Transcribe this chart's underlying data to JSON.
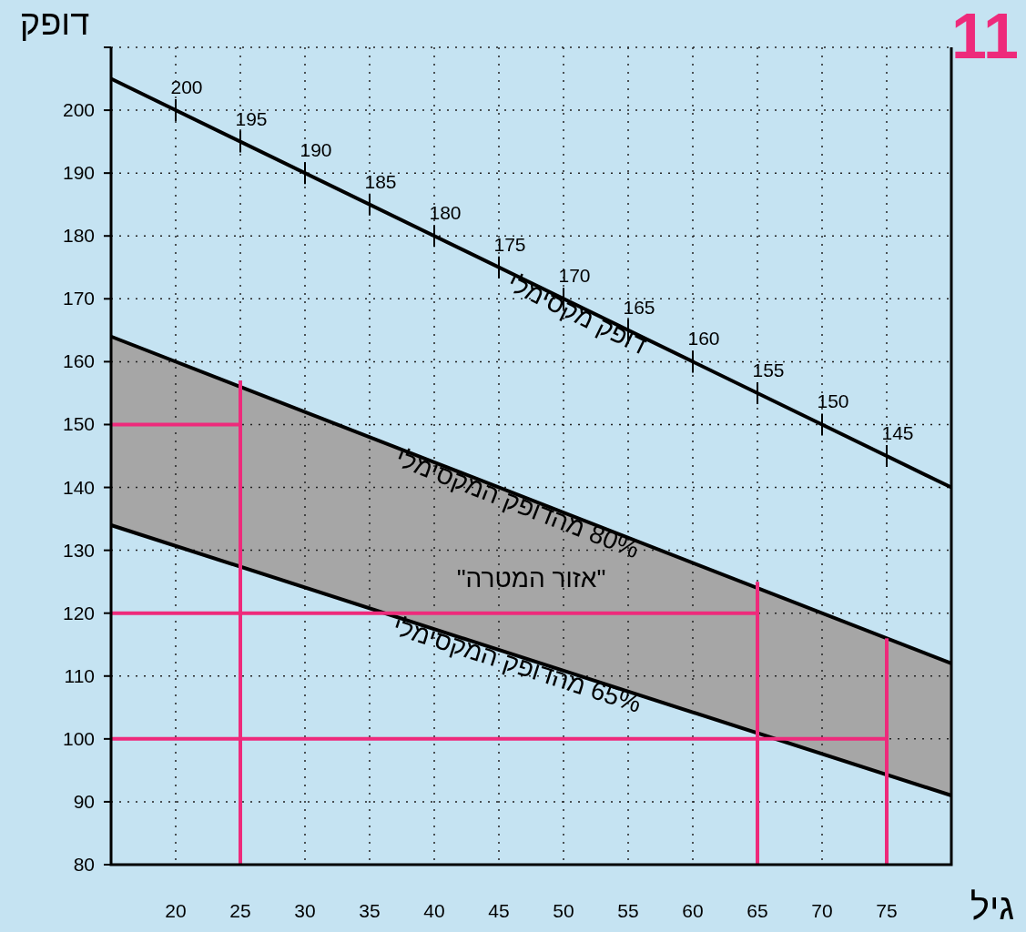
{
  "chart_data": {
    "type": "line",
    "xlabel": "גיל",
    "ylabel": "דופק",
    "xlim": [
      15,
      80
    ],
    "ylim": [
      80,
      210
    ],
    "xticks": [
      20,
      25,
      30,
      35,
      40,
      45,
      50,
      55,
      60,
      65,
      70,
      75
    ],
    "yticks": [
      80,
      90,
      100,
      110,
      120,
      130,
      140,
      150,
      160,
      170,
      180,
      190,
      200,
      {
        "value": 210,
        "label": null
      }
    ],
    "grid": true,
    "tick_labels": "xy",
    "series": [
      {
        "type": "line",
        "name": "דופק מקסימלי",
        "color": "#000000",
        "x": [
          15,
          80
        ],
        "values": [
          205,
          140
        ]
      },
      {
        "type": "line",
        "name": "80% מהדופק המקסימלי",
        "color": "#000000",
        "x": [
          15,
          80
        ],
        "values": [
          164,
          112
        ],
        "lower": [
          134,
          91
        ],
        "upper": [
          164,
          112
        ]
      },
      {
        "type": "line",
        "name": "65% מהדופק המקסימלי",
        "color": "#000000",
        "x": [
          15,
          80
        ],
        "values": [
          134,
          91
        ]
      },
      {
        "type": "line",
        "color": "#ee2a7b",
        "x": [
          15,
          25
        ],
        "values": [
          150,
          150
        ]
      },
      {
        "type": "line",
        "color": "#ee2a7b",
        "x": [
          25,
          25
        ],
        "values": [
          80,
          157
        ]
      },
      {
        "type": "line",
        "color": "#ee2a7b",
        "x": [
          15,
          65
        ],
        "values": [
          120,
          120
        ]
      },
      {
        "type": "line",
        "color": "#ee2a7b",
        "x": [
          65,
          65
        ],
        "values": [
          80,
          125
        ]
      },
      {
        "type": "line",
        "color": "#ee2a7b",
        "x": [
          15,
          75
        ],
        "values": [
          100,
          100
        ]
      },
      {
        "type": "line",
        "color": "#ee2a7b",
        "x": [
          75,
          75
        ],
        "values": [
          80,
          116
        ]
      }
    ],
    "annotations": [
      "11",
      "\"אזור המטרה\"",
      {
        "text": "200",
        "x": 20,
        "y": 200
      },
      {
        "text": "195",
        "x": 25,
        "y": 195
      },
      {
        "text": "190",
        "x": 30,
        "y": 190
      },
      {
        "text": "185",
        "x": 35,
        "y": 185
      },
      {
        "text": "180",
        "x": 40,
        "y": 180
      },
      {
        "text": "175",
        "x": 45,
        "y": 175
      },
      {
        "text": "170",
        "x": 50,
        "y": 170
      },
      {
        "text": "165",
        "x": 55,
        "y": 165
      },
      {
        "text": "160",
        "x": 60,
        "y": 160
      },
      {
        "text": "155",
        "x": 65,
        "y": 155
      },
      {
        "text": "150",
        "x": 70,
        "y": 150
      },
      {
        "text": "145",
        "x": 75,
        "y": 145
      }
    ]
  }
}
